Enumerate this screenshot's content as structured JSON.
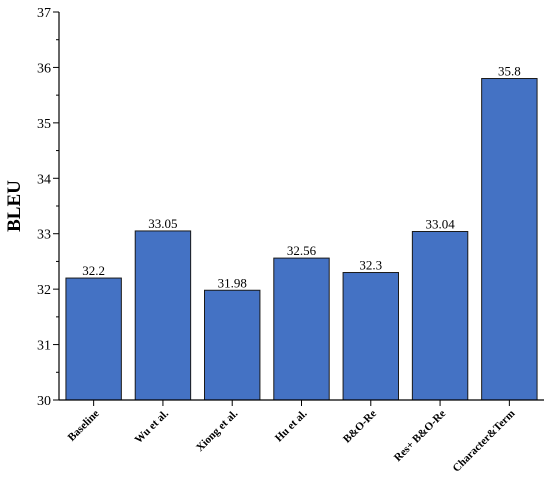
{
  "chart_data": {
    "type": "bar",
    "title": "",
    "xlabel": "",
    "ylabel": "BLEU",
    "ylim": [
      30,
      37
    ],
    "yticks": [
      30,
      31,
      32,
      33,
      34,
      35,
      36,
      37
    ],
    "grid": false,
    "legend": "none",
    "categories": [
      "Baseline",
      "Wu et al.",
      "Xiong et al.",
      "Hu et al.",
      "B&O-Re",
      "Res+ B&O-Re",
      "Character&Term"
    ],
    "values": [
      32.2,
      33.05,
      31.98,
      32.56,
      32.3,
      33.04,
      35.8
    ],
    "value_labels": [
      "32.2",
      "33.05",
      "31.98",
      "32.56",
      "32.3",
      "33.04",
      "35.8"
    ],
    "colors": {
      "bar_fill": "#4472C4",
      "bar_stroke": "#1a1a1a",
      "axis": "#000000"
    }
  }
}
